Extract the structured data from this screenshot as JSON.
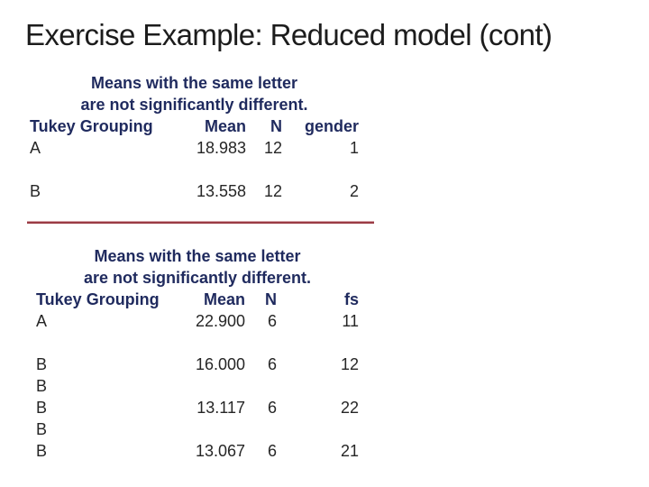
{
  "title": "Exercise Example: Reduced model (cont)",
  "colors": {
    "title_text": "#1c1c1c",
    "heading_navy": "#1f2a5e",
    "value_text": "#262626",
    "divider_red": "#9a3b44",
    "background": "#ffffff"
  },
  "gender_table": {
    "note_line1": "Means with the same letter",
    "note_line2": "are not significantly different.",
    "headers": {
      "grouping": "Tukey Grouping",
      "mean": "Mean",
      "n": "N",
      "factor": "gender"
    },
    "rows": [
      {
        "grouping": "A",
        "mean": "18.983",
        "n": "12",
        "factor": "1"
      },
      {
        "grouping": "",
        "mean": "",
        "n": "",
        "factor": ""
      },
      {
        "grouping": "B",
        "mean": "13.558",
        "n": "12",
        "factor": "2"
      }
    ]
  },
  "fs_table": {
    "note_line1": "Means with the same letter",
    "note_line2": "are not significantly different.",
    "headers": {
      "grouping": "Tukey Grouping",
      "mean": "Mean",
      "n": "N",
      "factor": "fs"
    },
    "rows": [
      {
        "grouping": "A",
        "mean": "22.900",
        "n": "6",
        "factor": "11"
      },
      {
        "grouping": "",
        "mean": "",
        "n": "",
        "factor": ""
      },
      {
        "grouping": "B",
        "mean": "16.000",
        "n": "6",
        "factor": "12"
      },
      {
        "grouping": "B",
        "mean": "",
        "n": "",
        "factor": ""
      },
      {
        "grouping": "B",
        "mean": "13.117",
        "n": "6",
        "factor": "22"
      },
      {
        "grouping": "B",
        "mean": "",
        "n": "",
        "factor": ""
      },
      {
        "grouping": "B",
        "mean": "13.067",
        "n": "6",
        "factor": "21"
      }
    ]
  }
}
